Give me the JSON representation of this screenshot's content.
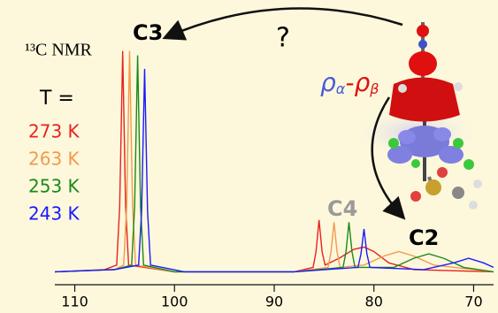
{
  "chart_data": {
    "type": "line",
    "title": "¹³C NMR",
    "legend_title": "T =",
    "annotations": {
      "c3": "C3",
      "c4": "C4",
      "c2": "C2",
      "question": "?",
      "spin_density": [
        "ρ",
        "α",
        "-",
        "ρ",
        "β"
      ]
    },
    "xlim": [
      112,
      68
    ],
    "ylim": [
      0,
      100
    ],
    "xticks": [
      110,
      100,
      90,
      80,
      70
    ],
    "series": [
      {
        "name": "273 K",
        "color": "#e8231f",
        "x": [
          112,
          107,
          105.8,
          105.5,
          105.2,
          104.9,
          104.6,
          100,
          88,
          86.1,
          85.8,
          85.5,
          85.2,
          84.9,
          83.5,
          82,
          81,
          80,
          78.5,
          76,
          68
        ],
        "values": [
          1,
          2,
          4,
          30,
          99,
          30,
          4,
          1,
          1,
          3,
          10,
          24,
          10,
          4,
          7,
          11,
          12,
          10,
          5,
          2,
          1
        ]
      },
      {
        "name": "263 K",
        "color": "#f39a4a",
        "x": [
          112,
          106,
          105.1,
          104.8,
          104.5,
          104.2,
          103.9,
          100,
          88,
          84.6,
          84.3,
          84,
          83.7,
          83.4,
          81,
          79,
          77.5,
          76,
          74,
          68
        ],
        "values": [
          1,
          2,
          4,
          30,
          99,
          30,
          4,
          1,
          1,
          3,
          10,
          23,
          10,
          3,
          4,
          8,
          10,
          8,
          4,
          1
        ]
      },
      {
        "name": "253 K",
        "color": "#1a8a1a",
        "x": [
          112,
          106,
          104.3,
          104,
          103.7,
          103.4,
          103.1,
          100,
          88,
          83.1,
          82.8,
          82.5,
          82.2,
          81.9,
          78,
          76,
          74.5,
          73,
          71,
          68
        ],
        "values": [
          1,
          2,
          4,
          30,
          97,
          30,
          4,
          1,
          1,
          3,
          10,
          23,
          10,
          3,
          3,
          7,
          9,
          7,
          3,
          1
        ]
      },
      {
        "name": "243 K",
        "color": "#1a1aff",
        "x": [
          112,
          106,
          103.6,
          103.3,
          103,
          102.7,
          102.4,
          99,
          88,
          81.6,
          81.3,
          81,
          80.7,
          80.4,
          75,
          72,
          70.5,
          69,
          68
        ],
        "values": [
          1,
          2,
          4,
          28,
          91,
          28,
          4,
          1,
          1,
          3,
          9,
          20,
          9,
          3,
          2,
          5,
          7,
          5,
          3
        ]
      }
    ]
  }
}
